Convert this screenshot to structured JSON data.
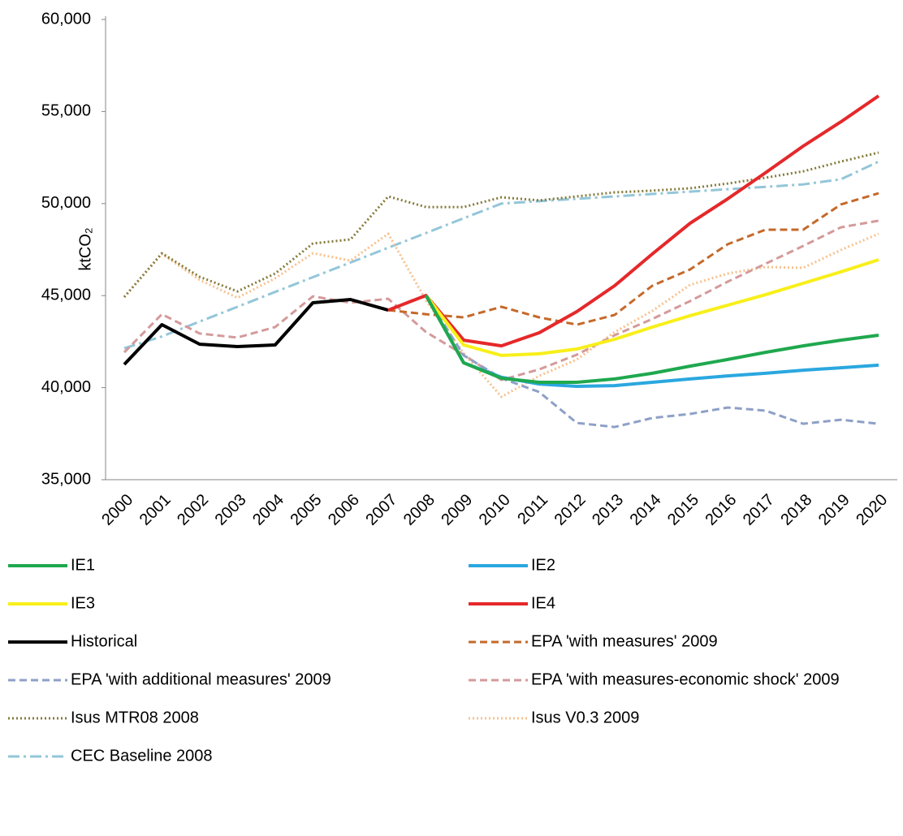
{
  "chart_data": {
    "type": "line",
    "y_label": "ktCO₂",
    "categories": [
      "2000",
      "2001",
      "2002",
      "2003",
      "2004",
      "2005",
      "2006",
      "2007",
      "2008",
      "2009",
      "2010",
      "2011",
      "2012",
      "2013",
      "2014",
      "2015",
      "2016",
      "2017",
      "2018",
      "2019",
      "2020"
    ],
    "ylim": [
      35000,
      60000
    ],
    "yticks": [
      {
        "value": 35000,
        "label": "35,000"
      },
      {
        "value": 40000,
        "label": "40,000"
      },
      {
        "value": 45000,
        "label": "45,000"
      },
      {
        "value": 50000,
        "label": "50,000"
      },
      {
        "value": 55000,
        "label": "55,000"
      },
      {
        "value": 60000,
        "label": "60,000"
      }
    ],
    "grid": false,
    "legend": "bottom",
    "series": [
      {
        "name": "IE1",
        "color": "#1fa84e",
        "style": "solid",
        "values": [
          null,
          null,
          null,
          null,
          null,
          null,
          null,
          null,
          45010,
          41350,
          40510,
          40290,
          40290,
          40470,
          40780,
          41170,
          41530,
          41920,
          42270,
          42580,
          42850
        ]
      },
      {
        "name": "IE2",
        "color": "#2aa7df",
        "style": "solid",
        "values": [
          null,
          null,
          null,
          null,
          null,
          null,
          null,
          null,
          45010,
          41350,
          40560,
          40200,
          40070,
          40110,
          40290,
          40470,
          40640,
          40780,
          40950,
          41080,
          41220
        ]
      },
      {
        "name": "IE3",
        "color": "#f8ef1a",
        "style": "solid",
        "values": [
          null,
          null,
          null,
          null,
          null,
          null,
          null,
          null,
          45010,
          42320,
          41750,
          41840,
          42100,
          42630,
          43290,
          43910,
          44480,
          45050,
          45670,
          46290,
          46950
        ]
      },
      {
        "name": "IE4",
        "color": "#e5282a",
        "style": "solid",
        "values": [
          null,
          null,
          null,
          null,
          null,
          null,
          null,
          44210,
          45010,
          42580,
          42270,
          42980,
          44130,
          45540,
          47260,
          48930,
          50260,
          51670,
          53120,
          54440,
          55850
        ]
      },
      {
        "name": "Historical",
        "color": "#000000",
        "style": "solid",
        "values": [
          41260,
          43420,
          42360,
          42230,
          42320,
          44610,
          44790,
          44210,
          null,
          null,
          null,
          null,
          null,
          null,
          null,
          null,
          null,
          null,
          null,
          null,
          null
        ]
      },
      {
        "name": "EPA 'with measures' 2009",
        "color": "#c5692a",
        "style": "dashed",
        "values": [
          null,
          null,
          null,
          null,
          null,
          null,
          null,
          44210,
          43990,
          43820,
          44390,
          43820,
          43420,
          43950,
          45540,
          46420,
          47790,
          48580,
          48580,
          49950,
          50560
        ]
      },
      {
        "name": "EPA 'with additional measures' 2009",
        "color": "#8ea0c8",
        "style": "dashed",
        "values": [
          null,
          null,
          null,
          null,
          null,
          null,
          null,
          null,
          45010,
          41750,
          40510,
          39760,
          38080,
          37860,
          38350,
          38570,
          38920,
          38750,
          38040,
          38260,
          38040
        ]
      },
      {
        "name": "EPA 'with measures-economic shock' 2009",
        "color": "#d49a9a",
        "style": "dashed",
        "values": [
          41920,
          43990,
          42940,
          42720,
          43290,
          44960,
          44610,
          44830,
          43020,
          41790,
          40420,
          40990,
          41790,
          42850,
          43730,
          44700,
          45760,
          46730,
          47700,
          48710,
          49070
        ]
      },
      {
        "name": "Isus MTR08 2008",
        "color": "#857b3a",
        "style": "dotted",
        "values": [
          44920,
          47300,
          46020,
          45230,
          46200,
          47830,
          48050,
          50390,
          49810,
          49810,
          50340,
          50170,
          50390,
          50610,
          50700,
          50830,
          51090,
          51400,
          51750,
          52280,
          52770
        ]
      },
      {
        "name": "Isus V0.3 2009",
        "color": "#f7c18e",
        "style": "dotted",
        "values": [
          44920,
          47260,
          45850,
          44880,
          45940,
          47300,
          46900,
          48360,
          44740,
          41870,
          39500,
          40640,
          41530,
          43020,
          44170,
          45580,
          46200,
          46550,
          46510,
          47480,
          48360
        ]
      },
      {
        "name": "CEC Baseline 2008",
        "color": "#93c6d9",
        "style": "dashdot",
        "values": [
          42140,
          42780,
          43590,
          44390,
          45200,
          46000,
          46800,
          47600,
          48400,
          49200,
          50000,
          50130,
          50260,
          50390,
          50520,
          50650,
          50780,
          50910,
          51040,
          51320,
          52280
        ]
      }
    ]
  }
}
